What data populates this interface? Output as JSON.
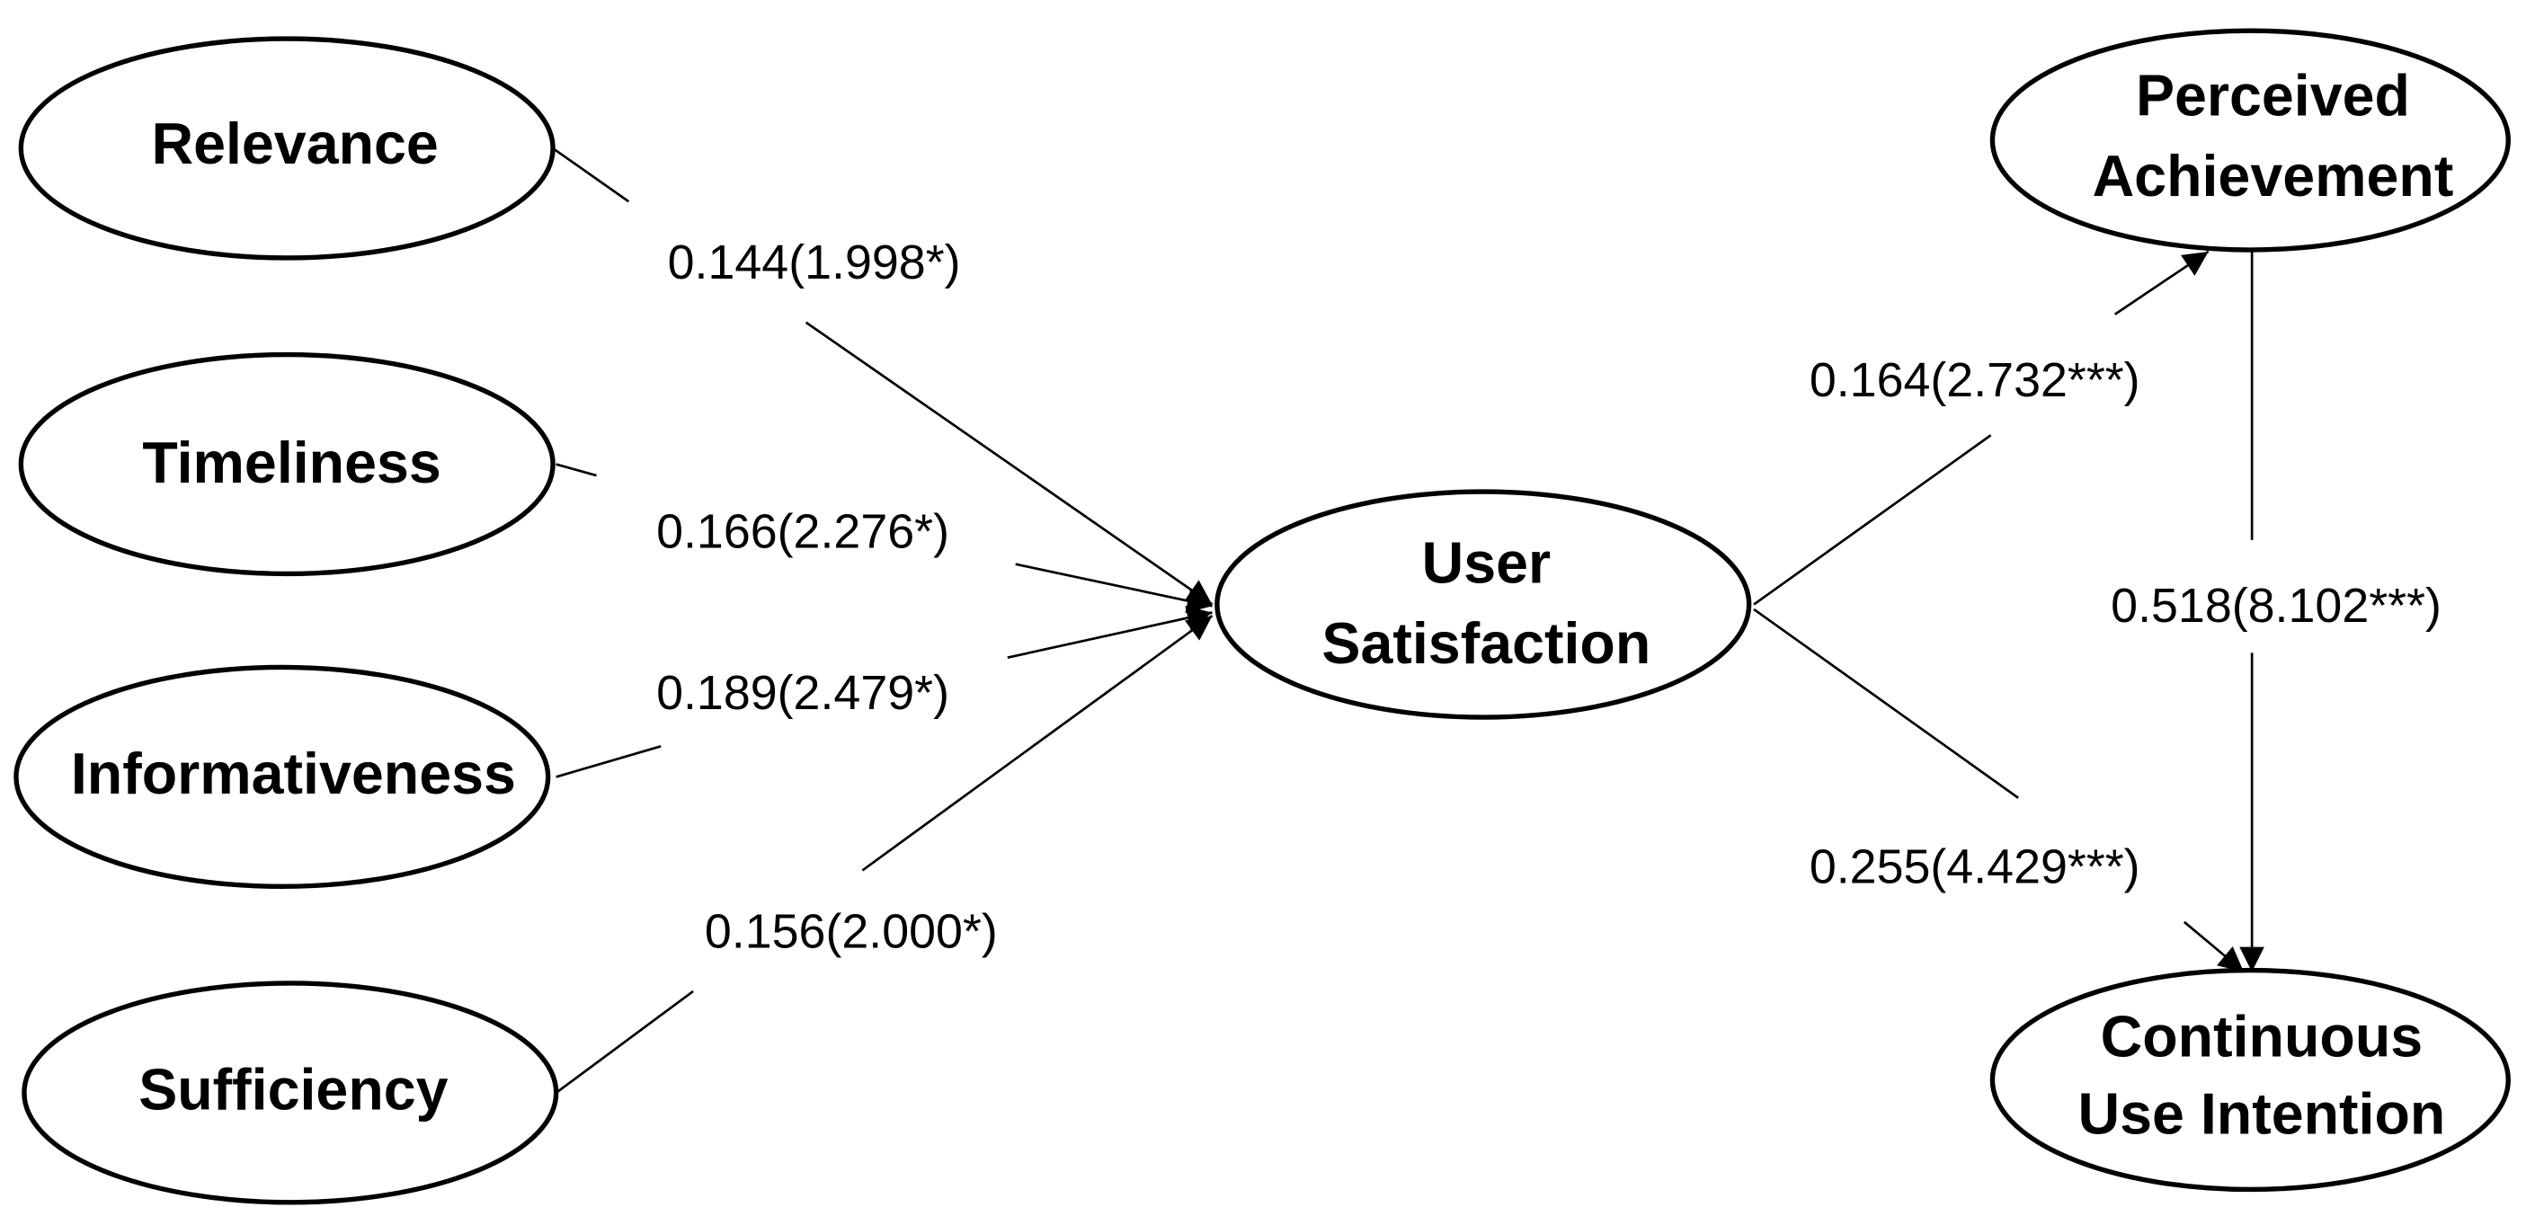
{
  "nodes": [
    {
      "label": [
        "Relevance"
      ]
    },
    {
      "label": [
        "Timeliness"
      ]
    },
    {
      "label": [
        "Informativeness"
      ]
    },
    {
      "label": [
        "Sufficiency"
      ]
    },
    {
      "label": [
        "User",
        "Satisfaction"
      ]
    },
    {
      "label": [
        "Perceived",
        "Achievement"
      ]
    },
    {
      "label": [
        "Continuous",
        "Use Intention"
      ]
    }
  ],
  "edges": [
    {
      "label": "0.144(1.998*)"
    },
    {
      "label": "0.166(2.276*)"
    },
    {
      "label": "0.189(2.479*)"
    },
    {
      "label": "0.156(2.000*)"
    },
    {
      "label": "0.164(2.732***)"
    },
    {
      "label": "0.255(4.429***)"
    },
    {
      "label": "0.518(8.102***)"
    }
  ]
}
